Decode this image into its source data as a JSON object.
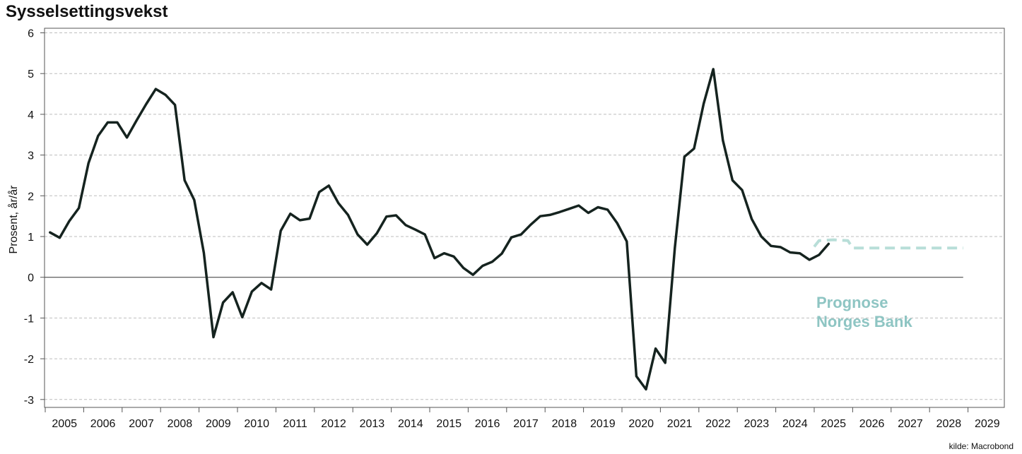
{
  "chart_data": {
    "type": "line",
    "title": "Sysselsettingsvekst",
    "ylabel": "Prosent, år/år",
    "ylim": [
      -3,
      6
    ],
    "yticks": [
      "6",
      "5",
      "4",
      "3",
      "2",
      "1",
      "0",
      "-1",
      "-2",
      "-3"
    ],
    "xlim": [
      2005,
      2030
    ],
    "xticks": [
      "2005",
      "2006",
      "2007",
      "2008",
      "2009",
      "2010",
      "2011",
      "2012",
      "2013",
      "2014",
      "2015",
      "2016",
      "2017",
      "2018",
      "2019",
      "2020",
      "2021",
      "2022",
      "2023",
      "2024",
      "2025",
      "2026",
      "2027",
      "2028",
      "2029"
    ],
    "grid": true,
    "annotation": [
      "Prognose",
      "Norges Bank"
    ],
    "source": "kilde: Macrobond",
    "colors": {
      "actual": "#15231f",
      "forecast": "#b8ded8",
      "annotation": "#8ec5c3",
      "grid": "#bdbdbd"
    },
    "series": [
      {
        "kind": "actual",
        "x": [
          2005.125,
          2005.375,
          2005.625,
          2005.875,
          2006.125,
          2006.375,
          2006.625,
          2006.875,
          2007.125,
          2007.375,
          2007.625,
          2007.875,
          2008.125,
          2008.375,
          2008.625,
          2008.875,
          2009.125,
          2009.375,
          2009.625,
          2009.875,
          2010.125,
          2010.375,
          2010.625,
          2010.875,
          2011.125,
          2011.375,
          2011.625,
          2011.875,
          2012.125,
          2012.375,
          2012.625,
          2012.875,
          2013.125,
          2013.375,
          2013.625,
          2013.875,
          2014.125,
          2014.375,
          2014.625,
          2014.875,
          2015.125,
          2015.375,
          2015.625,
          2015.875,
          2016.125,
          2016.375,
          2016.625,
          2016.875,
          2017.125,
          2017.375,
          2017.625,
          2017.875,
          2018.125,
          2018.375,
          2018.625,
          2018.875,
          2019.125,
          2019.375,
          2019.625,
          2019.875,
          2020.125,
          2020.375,
          2020.625,
          2020.875,
          2021.125,
          2021.375,
          2021.625,
          2021.875,
          2022.125,
          2022.375,
          2022.625,
          2022.875,
          2023.125,
          2023.375,
          2023.625,
          2023.875,
          2024.125,
          2024.375,
          2024.625,
          2024.875,
          2025.125,
          2025.375
        ],
        "y": [
          1.1,
          0.97,
          1.38,
          1.7,
          2.8,
          3.47,
          3.8,
          3.8,
          3.43,
          3.85,
          4.25,
          4.62,
          4.48,
          4.23,
          2.38,
          1.9,
          0.6,
          -1.47,
          -0.62,
          -0.37,
          -0.98,
          -0.35,
          -0.14,
          -0.3,
          1.14,
          1.56,
          1.4,
          1.44,
          2.09,
          2.25,
          1.82,
          1.53,
          1.05,
          0.8,
          1.08,
          1.49,
          1.52,
          1.28,
          1.17,
          1.05,
          0.47,
          0.59,
          0.51,
          0.23,
          0.06,
          0.28,
          0.38,
          0.58,
          0.98,
          1.05,
          1.29,
          1.5,
          1.53,
          1.6,
          1.68,
          1.76,
          1.58,
          1.72,
          1.66,
          1.33,
          0.88,
          -2.43,
          -2.75,
          -1.75,
          -2.1,
          0.72,
          2.96,
          3.16,
          4.26,
          5.11,
          3.36,
          2.38,
          2.14,
          1.43,
          1.0,
          0.77,
          0.74,
          0.61,
          0.59,
          0.43,
          0.55,
          0.82
        ]
      },
      {
        "kind": "forecast",
        "x": [
          2025.0,
          2025.125,
          2025.5,
          2025.875,
          2026.0,
          2026.5,
          2027.0,
          2027.5,
          2028.0,
          2028.5,
          2028.875
        ],
        "y": [
          0.75,
          0.9,
          0.92,
          0.9,
          0.72,
          0.72,
          0.72,
          0.72,
          0.72,
          0.72,
          0.72
        ]
      }
    ]
  }
}
